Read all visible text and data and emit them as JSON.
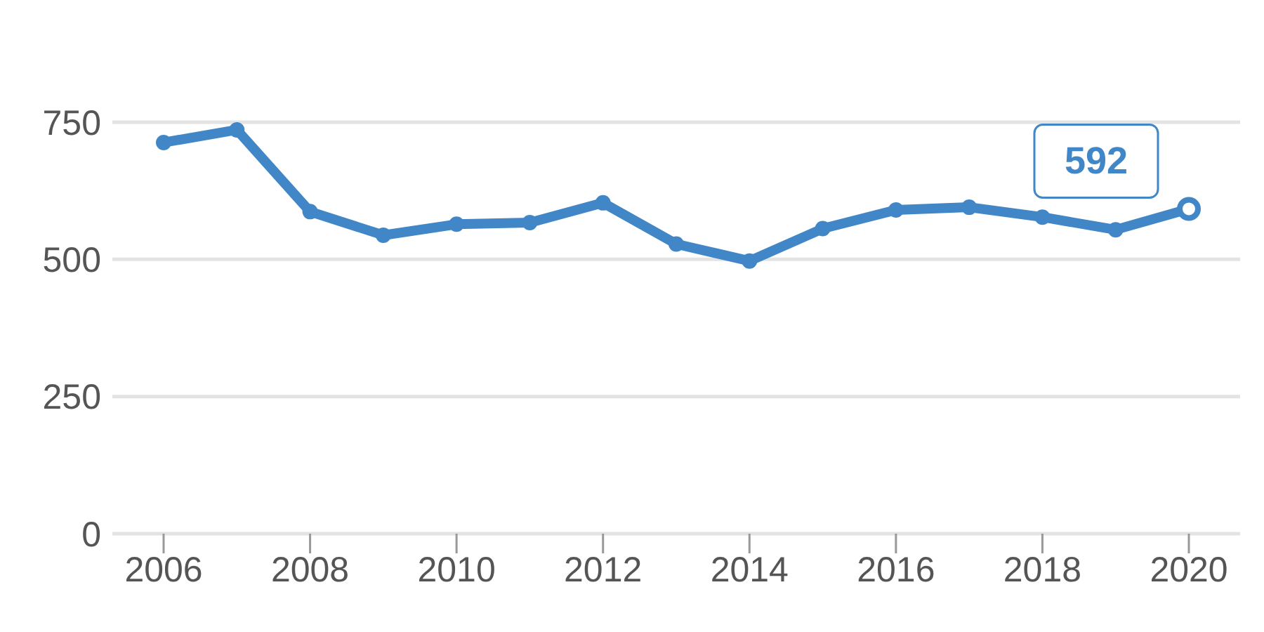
{
  "chart_data": {
    "type": "line",
    "x": [
      2006,
      2007,
      2008,
      2009,
      2010,
      2011,
      2012,
      2013,
      2014,
      2015,
      2016,
      2017,
      2018,
      2019,
      2020
    ],
    "series": [
      {
        "color": "#4187c8",
        "values": [
          713,
          736,
          587,
          544,
          564,
          567,
          603,
          528,
          497,
          556,
          590,
          595,
          577,
          554,
          592
        ]
      }
    ],
    "xlim": [
      2005.3,
      2020.7
    ],
    "xticks": [
      2006,
      2008,
      2010,
      2012,
      2014,
      2016,
      2018,
      2020
    ],
    "ylim": [
      0,
      750
    ],
    "yticks": [
      0,
      250,
      500,
      750
    ],
    "grid": "y",
    "marker": "circle",
    "line_style": "solid",
    "annotations": [
      {
        "text": "592",
        "x": 2020,
        "y": 592
      }
    ]
  }
}
